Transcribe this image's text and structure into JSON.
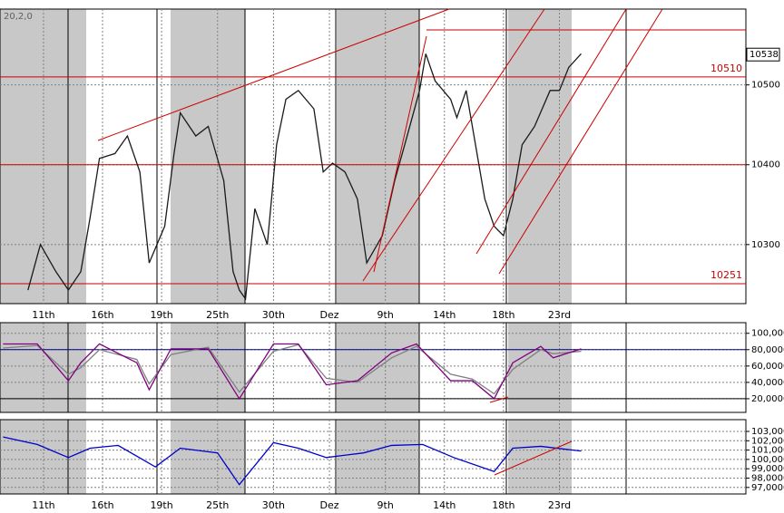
{
  "chart_data": [
    {
      "type": "line",
      "subtitle": "20,2,0",
      "x": [
        9,
        13,
        18,
        22,
        26,
        29,
        32,
        37,
        41,
        45,
        48,
        53,
        56,
        58,
        63,
        67,
        72,
        75,
        77,
        79,
        82,
        86,
        89,
        92,
        96,
        101,
        104,
        107,
        111,
        115,
        118,
        123,
        127,
        131,
        135,
        137,
        140,
        145,
        147,
        150,
        153,
        156,
        159,
        162,
        165,
        168,
        172,
        177,
        180,
        183,
        187
      ],
      "series": [
        {
          "color": "#1a1a1a",
          "values": [
            10243,
            10300,
            10266,
            10243,
            10266,
            10334,
            10408,
            10414,
            10436,
            10391,
            10277,
            10323,
            10414,
            10465,
            10436,
            10448,
            10380,
            10266,
            10243,
            10232,
            10345,
            10300,
            10425,
            10482,
            10493,
            10470,
            10391,
            10402,
            10391,
            10357,
            10277,
            10311,
            10380,
            10436,
            10493,
            10539,
            10505,
            10482,
            10459,
            10493,
            10425,
            10357,
            10323,
            10311,
            10357,
            10425,
            10448,
            10493,
            10493,
            10522,
            10539
          ]
        }
      ],
      "xlim": [
        0,
        240
      ],
      "ylim": [
        10226,
        10595
      ],
      "yticks": [
        10300,
        10400,
        10500
      ],
      "xticks": [
        {
          "value": 14,
          "label": "11th"
        },
        {
          "value": 33,
          "label": "16th"
        },
        {
          "value": 52,
          "label": "19th"
        },
        {
          "value": 70,
          "label": "25th"
        },
        {
          "value": 88,
          "label": "30th"
        },
        {
          "value": 106,
          "label": "Dez"
        },
        {
          "value": 124,
          "label": "9th"
        },
        {
          "value": 143,
          "label": "14th"
        },
        {
          "value": 162,
          "label": "18th"
        },
        {
          "value": 180,
          "label": "23rd"
        }
      ],
      "hlines": [
        10510,
        10400,
        10251
      ],
      "hline_color": "#cc0000",
      "last_value": 10538,
      "grid": true
    },
    {
      "type": "line",
      "x": [
        1,
        12,
        22,
        26,
        32,
        44,
        48,
        55,
        67,
        77,
        88,
        96,
        105,
        115,
        126,
        134,
        145,
        152,
        159,
        165,
        174,
        178,
        187
      ],
      "series": [
        {
          "color": "#808080",
          "values": [
            82,
            85,
            50,
            58,
            80,
            68,
            38,
            74,
            83,
            28,
            78,
            86,
            45,
            40,
            70,
            84,
            50,
            44,
            26,
            56,
            80,
            75,
            78
          ]
        },
        {
          "color": "#800080",
          "values": [
            87,
            87,
            42,
            64,
            87,
            64,
            31,
            81,
            81,
            20,
            87,
            87,
            37,
            42,
            76,
            87,
            42,
            42,
            20,
            64,
            84,
            70,
            81
          ]
        }
      ],
      "xlim": [
        0,
        240
      ],
      "ylim": [
        3.3,
        113
      ],
      "yticks": [
        {
          "value": 20,
          "label": "20,0000"
        },
        {
          "value": 40,
          "label": "40,0000"
        },
        {
          "value": 60,
          "label": "60,0000"
        },
        {
          "value": 80,
          "label": "80,0000"
        },
        {
          "value": 100,
          "label": "100,0000"
        }
      ],
      "hlines": [
        80,
        20
      ],
      "hline_colors": [
        "#000080",
        "#000000"
      ],
      "grid": true
    },
    {
      "type": "line",
      "x": [
        1,
        12,
        22,
        29,
        38,
        50,
        58,
        70,
        77,
        88,
        96,
        105,
        117,
        126,
        136,
        146,
        159,
        165,
        174,
        187
      ],
      "series": [
        {
          "color": "#0000cc",
          "values": [
            102.4,
            101.6,
            100.2,
            101.2,
            101.5,
            99.2,
            101.2,
            100.7,
            97.3,
            101.8,
            101.2,
            100.2,
            100.7,
            101.5,
            101.6,
            100.2,
            98.7,
            101.2,
            101.4,
            100.9
          ]
        }
      ],
      "xlim": [
        0,
        240
      ],
      "ylim": [
        96.3,
        104.26
      ],
      "yticks": [
        {
          "value": 97,
          "label": "97,0000"
        },
        {
          "value": 98,
          "label": "98,0000"
        },
        {
          "value": 99,
          "label": "99,0000"
        },
        {
          "value": 100,
          "label": "100,0000"
        },
        {
          "value": 101,
          "label": "101,0000"
        },
        {
          "value": 102,
          "label": "102,0000"
        },
        {
          "value": 103,
          "label": "103,0000"
        }
      ],
      "xticks": [
        {
          "value": 14,
          "label": "11th"
        },
        {
          "value": 33,
          "label": "16th"
        },
        {
          "value": 52,
          "label": "19th"
        },
        {
          "value": 70,
          "label": "25th"
        },
        {
          "value": 88,
          "label": "30th"
        },
        {
          "value": 106,
          "label": "Dez"
        },
        {
          "value": 124,
          "label": "9th"
        },
        {
          "value": 143,
          "label": "14th"
        },
        {
          "value": 162,
          "label": "18th"
        },
        {
          "value": 180,
          "label": "23rd"
        }
      ],
      "grid": true
    }
  ]
}
